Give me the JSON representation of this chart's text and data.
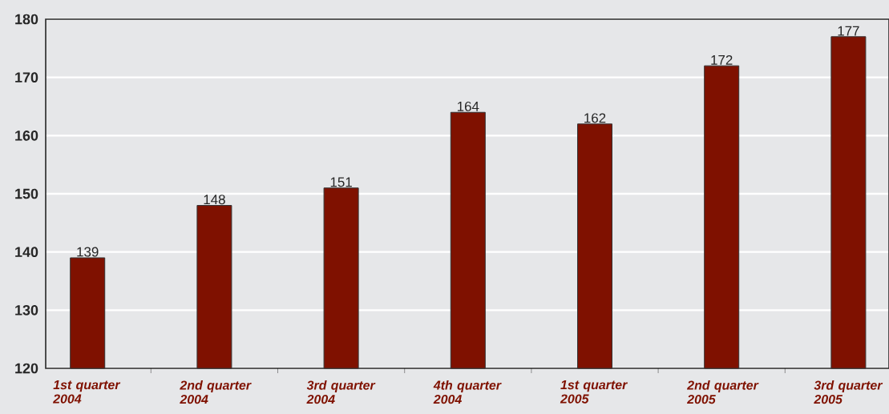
{
  "chart_data": {
    "type": "bar",
    "categories": [
      "1st quarter 2004",
      "2nd quarter 2004",
      "3rd quarter 2004",
      "4th quarter 2004",
      "1st quarter 2005",
      "2nd quarter 2005",
      "3rd quarter 2005"
    ],
    "values": [
      139,
      148,
      151,
      164,
      162,
      172,
      177
    ],
    "color": "#7f1100",
    "ylim": [
      120,
      180
    ],
    "yticks": [
      120,
      130,
      140,
      150,
      160,
      170,
      180
    ],
    "grid": "y",
    "data_labels": true
  }
}
